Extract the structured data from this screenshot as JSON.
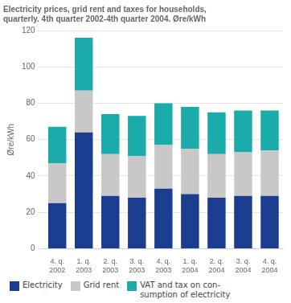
{
  "chart_data": {
    "type": "bar",
    "title": "Electricity prices, grid rent and taxes for households,\nquarterly. 4th quarter 2002-4th quarter 2004. Øre/kWh",
    "ylabel": "Øre/kWh",
    "categories": [
      "4. q.\n2002",
      "1. q.\n2003",
      "2. q.\n2003",
      "3. q.\n2003",
      "4. q.\n2003",
      "1. q.\n2004",
      "2. q.\n2004",
      "3. q.\n2004",
      "4. q.\n2004"
    ],
    "series": [
      {
        "name": "Electricity",
        "color": "#1b3d8f",
        "values": [
          25,
          64,
          29,
          28,
          33,
          30,
          28,
          29,
          29
        ]
      },
      {
        "name": "Grid rent",
        "color": "#c8c8c8",
        "values": [
          22,
          23,
          23,
          23,
          24,
          25,
          24,
          24,
          25
        ]
      },
      {
        "name": "VAT and tax on con-\nsumption of electricity",
        "color": "#1aabaa",
        "values": [
          20,
          29,
          22,
          22,
          23,
          23,
          23,
          23,
          22
        ]
      }
    ],
    "stacked": true,
    "ylim": [
      0,
      120
    ],
    "yticks": [
      0,
      20,
      40,
      60,
      80,
      100,
      120
    ],
    "grid": true,
    "legend": "lower left"
  }
}
